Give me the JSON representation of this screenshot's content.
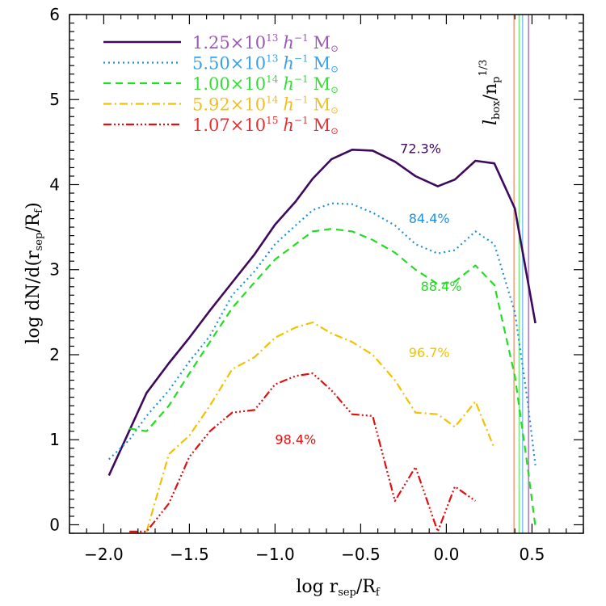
{
  "chart_data": {
    "type": "line",
    "xlabel": "log r_sep/R_f",
    "xlabel_main": "log r",
    "xlabel_sub": "sep",
    "xlabel_tail": "/R",
    "xlabel_sub2": "f",
    "ylabel_main": "log dN/d(r",
    "ylabel_sub": "sep",
    "ylabel_mid": "/R",
    "ylabel_sub2": "f",
    "ylabel_tail": ")",
    "xlim": [
      -2.2,
      0.8
    ],
    "ylim": [
      -0.1,
      6.0
    ],
    "xticks": [
      -2.0,
      -1.5,
      -1.0,
      -0.5,
      0.0,
      0.5
    ],
    "xtick_labels": [
      "−2.0",
      "−1.5",
      "−1.0",
      "−0.5",
      "0.0",
      "0.5"
    ],
    "yticks": [
      0,
      1,
      2,
      3,
      4,
      5,
      6
    ],
    "ytick_labels": [
      "0",
      "1",
      "2",
      "3",
      "4",
      "5",
      "6"
    ],
    "grid": false,
    "legend_position": "top-left",
    "box_label": "l_box/n_p^1/3",
    "vertical_lines": [
      {
        "x": 0.395,
        "color": "#f4a582"
      },
      {
        "x": 0.425,
        "color": "#7fe87f"
      },
      {
        "x": 0.445,
        "color": "#87c8f0"
      },
      {
        "x": 0.48,
        "color": "#b07fc8"
      }
    ],
    "series": [
      {
        "name": "1.25×10^13 h^-1 M⊙",
        "mantissa": "1.25×10",
        "exponent": "13",
        "color": "#3d0a5c",
        "label_color": "#9b59b6",
        "dash": "",
        "percent": "72.3%",
        "percent_color": "#3d0a5c",
        "percent_at": [
          -0.27,
          4.37
        ],
        "points": [
          [
            -1.97,
            0.58
          ],
          [
            -1.75,
            1.55
          ],
          [
            -1.62,
            1.9
          ],
          [
            -1.5,
            2.2
          ],
          [
            -1.38,
            2.52
          ],
          [
            -1.25,
            2.85
          ],
          [
            -1.12,
            3.18
          ],
          [
            -1.0,
            3.53
          ],
          [
            -0.88,
            3.8
          ],
          [
            -0.78,
            4.07
          ],
          [
            -0.67,
            4.3
          ],
          [
            -0.55,
            4.41
          ],
          [
            -0.43,
            4.4
          ],
          [
            -0.3,
            4.27
          ],
          [
            -0.18,
            4.1
          ],
          [
            -0.05,
            3.98
          ],
          [
            0.05,
            4.06
          ],
          [
            0.17,
            4.28
          ],
          [
            0.28,
            4.25
          ],
          [
            0.4,
            3.72
          ],
          [
            0.52,
            2.37
          ]
        ]
      },
      {
        "name": "5.50×10^13 h^-1 M⊙",
        "mantissa": "5.50×10",
        "exponent": "13",
        "color": "#1e90e0",
        "label_color": "#3aa0e8",
        "dash": "2,4",
        "percent": "84.4%",
        "percent_color": "#1e90e0",
        "percent_at": [
          -0.22,
          3.55
        ],
        "points": [
          [
            -1.97,
            0.77
          ],
          [
            -1.85,
            1.0
          ],
          [
            -1.75,
            1.28
          ],
          [
            -1.62,
            1.58
          ],
          [
            -1.5,
            1.92
          ],
          [
            -1.38,
            2.22
          ],
          [
            -1.25,
            2.7
          ],
          [
            -1.12,
            2.98
          ],
          [
            -1.0,
            3.3
          ],
          [
            -0.88,
            3.52
          ],
          [
            -0.78,
            3.7
          ],
          [
            -0.67,
            3.78
          ],
          [
            -0.55,
            3.77
          ],
          [
            -0.43,
            3.67
          ],
          [
            -0.3,
            3.52
          ],
          [
            -0.18,
            3.3
          ],
          [
            -0.05,
            3.19
          ],
          [
            0.05,
            3.23
          ],
          [
            0.17,
            3.45
          ],
          [
            0.28,
            3.3
          ],
          [
            0.4,
            2.5
          ],
          [
            0.47,
            1.52
          ],
          [
            0.52,
            0.7
          ]
        ]
      },
      {
        "name": "1.00×10^14 h^-1 M⊙",
        "mantissa": "1.00×10",
        "exponent": "14",
        "color": "#22dd22",
        "label_color": "#33e033",
        "dash": "9,6",
        "percent": "88.4%",
        "percent_color": "#22dd22",
        "percent_at": [
          -0.15,
          2.75
        ],
        "points": [
          [
            -1.85,
            1.13
          ],
          [
            -1.75,
            1.1
          ],
          [
            -1.62,
            1.4
          ],
          [
            -1.5,
            1.78
          ],
          [
            -1.38,
            2.15
          ],
          [
            -1.25,
            2.55
          ],
          [
            -1.12,
            2.85
          ],
          [
            -1.0,
            3.12
          ],
          [
            -0.88,
            3.3
          ],
          [
            -0.78,
            3.45
          ],
          [
            -0.67,
            3.48
          ],
          [
            -0.55,
            3.45
          ],
          [
            -0.43,
            3.35
          ],
          [
            -0.3,
            3.2
          ],
          [
            -0.18,
            3.0
          ],
          [
            -0.05,
            2.83
          ],
          [
            0.05,
            2.86
          ],
          [
            0.17,
            3.05
          ],
          [
            0.28,
            2.82
          ],
          [
            0.4,
            1.75
          ],
          [
            0.47,
            0.75
          ],
          [
            0.52,
            -0.02
          ]
        ]
      },
      {
        "name": "5.92×10^14 h^-1 M⊙",
        "mantissa": "5.92×10",
        "exponent": "14",
        "color": "#f2c200",
        "label_color": "#f0c020",
        "dash": "10,4,2,4",
        "percent": "96.7%",
        "percent_color": "#f2c200",
        "percent_at": [
          -0.22,
          1.97
        ],
        "points": [
          [
            -1.75,
            -0.08
          ],
          [
            -1.62,
            0.83
          ],
          [
            -1.5,
            1.05
          ],
          [
            -1.38,
            1.4
          ],
          [
            -1.25,
            1.83
          ],
          [
            -1.12,
            1.97
          ],
          [
            -1.0,
            2.2
          ],
          [
            -0.88,
            2.32
          ],
          [
            -0.78,
            2.38
          ],
          [
            -0.67,
            2.25
          ],
          [
            -0.55,
            2.15
          ],
          [
            -0.43,
            2.0
          ],
          [
            -0.3,
            1.7
          ],
          [
            -0.18,
            1.32
          ],
          [
            -0.05,
            1.3
          ],
          [
            0.05,
            1.15
          ],
          [
            0.17,
            1.45
          ],
          [
            0.28,
            0.9
          ]
        ]
      },
      {
        "name": "1.07×10^15 h^-1 M⊙",
        "mantissa": "1.07×10",
        "exponent": "15",
        "color": "#e01010",
        "label_color": "#e83030",
        "dash": "10,3,2,3,2,3,2,3",
        "percent": "98.4%",
        "percent_color": "#e01010",
        "percent_at": [
          -1.0,
          0.95
        ],
        "points": [
          [
            -1.85,
            -0.08
          ],
          [
            -1.75,
            -0.08
          ],
          [
            -1.62,
            0.25
          ],
          [
            -1.5,
            0.8
          ],
          [
            -1.38,
            1.1
          ],
          [
            -1.25,
            1.32
          ],
          [
            -1.12,
            1.35
          ],
          [
            -1.0,
            1.65
          ],
          [
            -0.88,
            1.75
          ],
          [
            -0.78,
            1.78
          ],
          [
            -0.67,
            1.58
          ],
          [
            -0.55,
            1.3
          ],
          [
            -0.43,
            1.28
          ],
          [
            -0.3,
            0.28
          ],
          [
            -0.18,
            0.68
          ],
          [
            -0.05,
            -0.08
          ],
          [
            0.05,
            0.45
          ],
          [
            0.17,
            0.28
          ]
        ]
      }
    ]
  }
}
